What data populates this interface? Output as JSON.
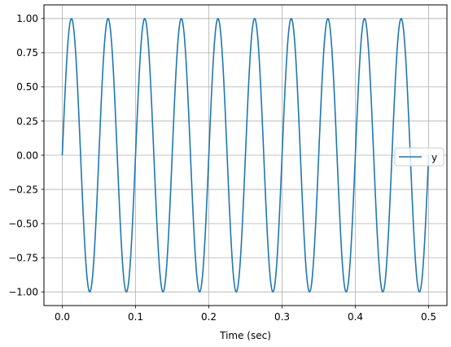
{
  "chart_data": {
    "type": "line",
    "title": "",
    "xlabel": "Time (sec)",
    "ylabel": "",
    "xlim": [
      -0.025,
      0.525
    ],
    "ylim": [
      -1.1,
      1.1
    ],
    "x_ticks": [
      0.0,
      0.1,
      0.2,
      0.3,
      0.4,
      0.5
    ],
    "x_tick_labels": [
      "0.0",
      "0.1",
      "0.2",
      "0.3",
      "0.4",
      "0.5"
    ],
    "y_ticks": [
      1.0,
      0.75,
      0.5,
      0.25,
      0.0,
      -0.25,
      -0.5,
      -0.75,
      -1.0
    ],
    "y_tick_labels": [
      "1.00",
      "0.75",
      "0.50",
      "0.25",
      "0.00",
      "−0.25",
      "−0.50",
      "−0.75",
      "−1.00"
    ],
    "grid": true,
    "legend_position": "center right",
    "series": [
      {
        "name": "y",
        "function": "sin",
        "frequency_hz": 20,
        "amplitude": 1,
        "x_start": 0.0,
        "x_end": 0.5,
        "color": "#1f77b4"
      }
    ]
  },
  "colors": {
    "axes": "#000000",
    "grid": "#b0b0b0",
    "legend_border": "#cccccc"
  }
}
